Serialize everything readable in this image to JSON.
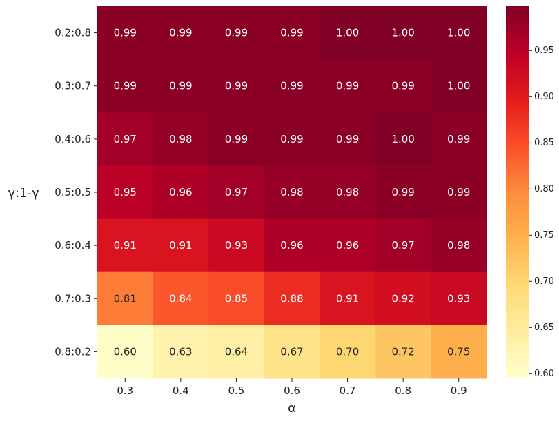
{
  "chart_data": {
    "type": "heatmap",
    "title": "",
    "xlabel": "α",
    "ylabel": "γ:1-γ",
    "x_categories": [
      "0.3",
      "0.4",
      "0.5",
      "0.6",
      "0.7",
      "0.8",
      "0.9"
    ],
    "y_categories": [
      "0.2:0.8",
      "0.3:0.7",
      "0.4:0.6",
      "0.5:0.5",
      "0.6:0.4",
      "0.7:0.3",
      "0.8:0.2"
    ],
    "values": [
      [
        0.99,
        0.99,
        0.99,
        0.99,
        1.0,
        1.0,
        1.0
      ],
      [
        0.99,
        0.99,
        0.99,
        0.99,
        0.99,
        0.99,
        1.0
      ],
      [
        0.97,
        0.98,
        0.99,
        0.99,
        0.99,
        1.0,
        0.99
      ],
      [
        0.95,
        0.96,
        0.97,
        0.98,
        0.98,
        0.99,
        0.99
      ],
      [
        0.91,
        0.91,
        0.93,
        0.96,
        0.96,
        0.97,
        0.98
      ],
      [
        0.81,
        0.84,
        0.85,
        0.88,
        0.91,
        0.92,
        0.93
      ],
      [
        0.6,
        0.63,
        0.64,
        0.67,
        0.7,
        0.72,
        0.75
      ]
    ],
    "value_format": "0.00",
    "colormap": "YlOrRd",
    "colorbar": {
      "range": [
        0.595,
        0.998
      ],
      "ticks": [
        0.6,
        0.65,
        0.7,
        0.75,
        0.8,
        0.85,
        0.9,
        0.95
      ],
      "tick_labels": [
        "0.60",
        "0.65",
        "0.70",
        "0.75",
        "0.80",
        "0.85",
        "0.90",
        "0.95"
      ],
      "placement": "right"
    },
    "grid": false
  }
}
